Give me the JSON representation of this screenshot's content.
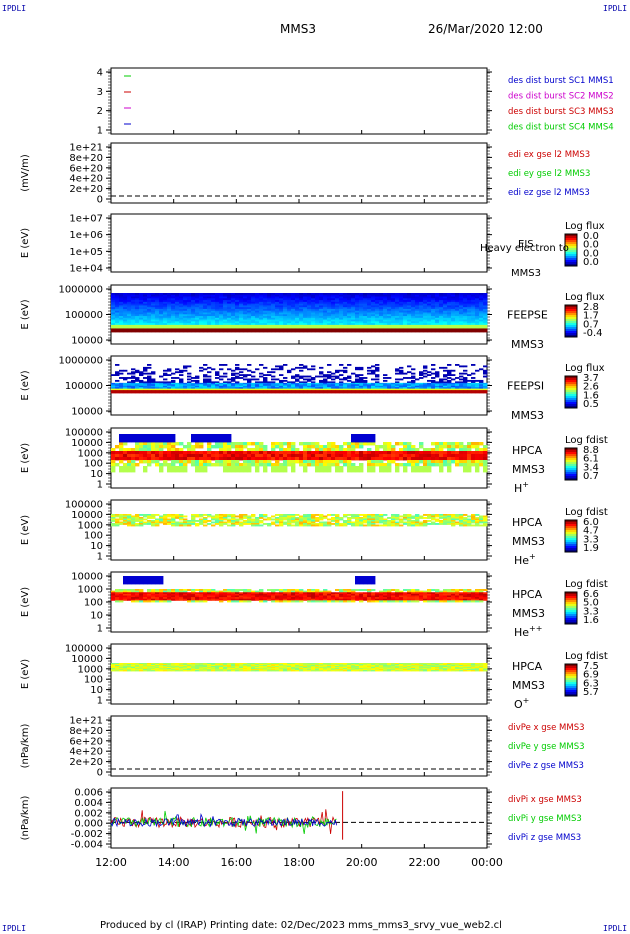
{
  "header": {
    "corner_label": "IPDLI",
    "spacecraft": "MMS3",
    "datetime": "26/Mar/2020 12:00"
  },
  "footer": {
    "text": "Produced by cl (IRAP)   Printing date: 02/Dec/2023   mms_mms3_srvy_vue_web2.cl"
  },
  "colors": {
    "mms1": "#0000cc",
    "mms2": "#cc00cc",
    "mms3": "#cc0000",
    "mms4": "#00cc00",
    "x": "#cc0000",
    "y": "#00cc00",
    "z": "#0000cc"
  },
  "chart_data": [
    {
      "id": "p1",
      "type": "line",
      "yticks": [
        "4",
        "3",
        "2",
        "1"
      ],
      "legend": [
        {
          "label": "des dist burst SC1 MMS1",
          "color": "#0000cc"
        },
        {
          "label": "des dist burst SC2 MMS2",
          "color": "#cc00cc"
        },
        {
          "label": "des dist burst SC3 MMS3",
          "color": "#cc0000"
        },
        {
          "label": "des dist burst SC4 MMS4",
          "color": "#00cc00"
        }
      ]
    },
    {
      "id": "p2",
      "type": "line",
      "ylabel": "(mV/m)",
      "yticks": [
        "1e+21",
        "8e+20",
        "6e+20",
        "4e+20",
        "2e+20",
        "0"
      ],
      "legend": [
        {
          "label": "edi ex gse l2 MMS3",
          "color": "#cc0000"
        },
        {
          "label": "edi ey gse l2 MMS3",
          "color": "#00cc00"
        },
        {
          "label": "edi ez gse l2 MMS3",
          "color": "#0000cc"
        }
      ]
    },
    {
      "id": "p3",
      "type": "heatmap",
      "ylabel": "E (eV)",
      "yticks": [
        "1e+07",
        "1e+06",
        "1e+05",
        "1e+04"
      ],
      "inst": [
        "EIS",
        "MMS3"
      ],
      "overlay": "Heavy electron to",
      "cbar_title": "Log flux",
      "cbar_ticks": [
        "0.0",
        "0.0",
        "0.0",
        "0.0"
      ]
    },
    {
      "id": "p4",
      "type": "heatmap",
      "ylabel": "E (eV)",
      "yticks": [
        "1000000",
        "100000",
        "10000"
      ],
      "inst": [
        "FEEPSE",
        "MMS3"
      ],
      "cbar_title": "Log flux",
      "cbar_ticks": [
        "2.8",
        "1.7",
        "0.7",
        "-0.4"
      ]
    },
    {
      "id": "p5",
      "type": "heatmap",
      "ylabel": "E (eV)",
      "yticks": [
        "1000000",
        "100000",
        "10000"
      ],
      "inst": [
        "FEEPSI",
        "MMS3"
      ],
      "cbar_title": "Log flux",
      "cbar_ticks": [
        "3.7",
        "2.6",
        "1.6",
        "0.5"
      ]
    },
    {
      "id": "p6",
      "type": "heatmap",
      "ylabel": "E (eV)",
      "yticks": [
        "100000",
        "10000",
        "1000",
        "100",
        "10",
        "1"
      ],
      "inst": [
        "HPCA",
        "MMS3"
      ],
      "species_base": "H",
      "species_sup": "+",
      "cbar_title": "Log fdist",
      "cbar_ticks": [
        "8.8",
        "6.1",
        "3.4",
        "0.7"
      ]
    },
    {
      "id": "p7",
      "type": "heatmap",
      "ylabel": "E (eV)",
      "yticks": [
        "100000",
        "10000",
        "1000",
        "100",
        "10",
        "1"
      ],
      "inst": [
        "HPCA",
        "MMS3"
      ],
      "species_base": "He",
      "species_sup": "+",
      "cbar_title": "Log fdist",
      "cbar_ticks": [
        "6.0",
        "4.7",
        "3.3",
        "1.9"
      ]
    },
    {
      "id": "p8",
      "type": "heatmap",
      "ylabel": "E (eV)",
      "yticks": [
        "10000",
        "1000",
        "100",
        "10",
        "1"
      ],
      "inst": [
        "HPCA",
        "MMS3"
      ],
      "species_base": "He",
      "species_sup": "++",
      "cbar_title": "Log fdist",
      "cbar_ticks": [
        "6.6",
        "5.0",
        "3.3",
        "1.6"
      ]
    },
    {
      "id": "p9",
      "type": "heatmap",
      "ylabel": "E (eV)",
      "yticks": [
        "100000",
        "10000",
        "1000",
        "100",
        "10",
        "1"
      ],
      "inst": [
        "HPCA",
        "MMS3"
      ],
      "species_base": "O",
      "species_sup": "+",
      "cbar_title": "Log fdist",
      "cbar_ticks": [
        "7.5",
        "6.9",
        "6.3",
        "5.7"
      ]
    },
    {
      "id": "p10",
      "type": "line",
      "ylabel": "(nPa/km)",
      "yticks": [
        "1e+21",
        "8e+20",
        "6e+20",
        "4e+20",
        "2e+20",
        "0"
      ],
      "legend": [
        {
          "label": "divPe x gse MMS3",
          "color": "#cc0000"
        },
        {
          "label": "divPe y gse MMS3",
          "color": "#00cc00"
        },
        {
          "label": "divPe z gse MMS3",
          "color": "#0000cc"
        }
      ]
    },
    {
      "id": "p11",
      "type": "line",
      "ylabel": "(nPa/km)",
      "yticks": [
        "0.006",
        "0.004",
        "0.002",
        "0.000",
        "-0.002",
        "-0.004"
      ],
      "ylim": [
        -0.005,
        0.007
      ],
      "legend": [
        {
          "label": "divPi x gse MMS3",
          "color": "#cc0000"
        },
        {
          "label": "divPi y gse MMS3",
          "color": "#00cc00"
        },
        {
          "label": "divPi z gse MMS3",
          "color": "#0000cc"
        }
      ]
    }
  ],
  "x_axis": {
    "ticks": [
      "12:00",
      "14:00",
      "16:00",
      "18:00",
      "20:00",
      "22:00",
      "00:00"
    ],
    "xlim_hours": [
      12,
      24
    ]
  }
}
